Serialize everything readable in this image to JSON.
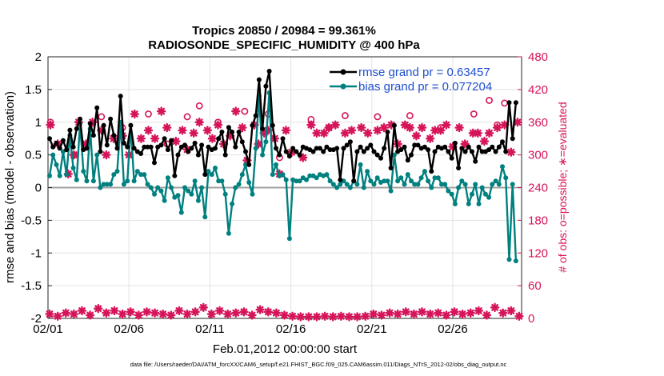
{
  "chart_data": {
    "type": "line",
    "title_line1": "Tropics 20850 / 20984 = 99.361%",
    "title_line2": "RADIOSONDE_SPECIFIC_HUMIDITY @ 400 hPa",
    "xlabel": "Feb.01,2012 00:00:00 start",
    "ylabel_left": "rmse and bias (model - observation)",
    "ylabel_right": "# of obs: o=possible; ∗=evaluated",
    "footer": "data file: /Users/raeder/DAI/ATM_forcXX/CAM6_setup/f.e21.FHIST_BGC.f09_025.CAM6assim.011/Diags_NTrS_2012-02/obs_diag_output.nc",
    "xlim": [
      1,
      30.25
    ],
    "ylim_left": [
      -2,
      2
    ],
    "ylim_right": [
      0,
      480
    ],
    "x_ticks": [
      1,
      6,
      11,
      16,
      21,
      26
    ],
    "x_tick_labels": [
      "02/01",
      "02/06",
      "02/11",
      "02/16",
      "02/21",
      "02/26"
    ],
    "y_ticks_left": [
      -2,
      -1.5,
      -1,
      -0.5,
      0,
      0.5,
      1,
      1.5,
      2
    ],
    "y_tick_labels_left": [
      "-2",
      "-1.5",
      "-1",
      "-0.5",
      "0",
      "0.5",
      "1",
      "1.5",
      "2"
    ],
    "y_ticks_right": [
      0,
      60,
      120,
      180,
      240,
      300,
      360,
      420,
      480
    ],
    "y_tick_labels_right": [
      "0",
      "60",
      "120",
      "180",
      "240",
      "300",
      "360",
      "420",
      "480"
    ],
    "grid": true,
    "legend_position": "top-right",
    "colors": {
      "rmse": "#000000",
      "bias": "#00807f",
      "obs": "#d6145a",
      "legend_text": "#1f4fd0",
      "zero_line": "#a0a0a0"
    },
    "series": [
      {
        "name": "rmse grand pr = 0.63457",
        "key": "rmse",
        "values": [
          0.75,
          0.62,
          0.68,
          0.6,
          0.72,
          0.58,
          0.88,
          0.62,
          0.9,
          1.05,
          0.58,
          0.6,
          0.98,
          0.8,
          1.22,
          0.55,
          0.95,
          0.65,
          1.05,
          0.8,
          0.6,
          1.4,
          0.68,
          0.62,
          0.95,
          0.6,
          0.55,
          0.52,
          0.62,
          0.62,
          0.62,
          0.38,
          0.62,
          0.65,
          0.75,
          0.58,
          0.72,
          0.18,
          0.5,
          0.62,
          0.65,
          0.55,
          0.6,
          0.68,
          0.5,
          0.65,
          0.2,
          0.62,
          0.58,
          0.6,
          0.75,
          0.85,
          0.5,
          0.92,
          0.85,
          0.62,
          0.85,
          0.7,
          0.55,
          0.35,
          0.95,
          1.1,
          1.65,
          0.9,
          1.55,
          1.78,
          0.95,
          0.6,
          0.5,
          0.75,
          0.55,
          0.48,
          0.6,
          0.55,
          0.5,
          0.62,
          0.6,
          0.58,
          0.55,
          0.6,
          0.6,
          0.55,
          0.62,
          0.58,
          0.58,
          0.6,
          0.12,
          0.6,
          0.65,
          0.7,
          0.1,
          0.55,
          0.62,
          0.55,
          0.6,
          0.65,
          0.55,
          0.5,
          0.45,
          0.6,
          0.85,
          0.3,
          0.95,
          0.55,
          0.58,
          0.62,
          0.42,
          0.5,
          0.65,
          0.65,
          0.6,
          0.62,
          0.58,
          0.25,
          0.55,
          0.62,
          0.6,
          0.62,
          0.55,
          0.45,
          0.68,
          0.3,
          0.6,
          0.55,
          0.62,
          0.55,
          0.4,
          0.62,
          0.55,
          0.55,
          0.58,
          0.62,
          0.55,
          0.62,
          0.7,
          0.55,
          1.3,
          0.75,
          1.3
        ]
      },
      {
        "name": "bias grand pr = 0.077204",
        "key": "bias",
        "values": [
          0.18,
          0.5,
          0.35,
          0.18,
          0.55,
          0.2,
          0.8,
          0.3,
          0.12,
          0.98,
          0.25,
          0.1,
          0.9,
          0.1,
          0.5,
          0.0,
          0.05,
          0.05,
          0.05,
          0.2,
          0.25,
          1.0,
          0.05,
          0.1,
          0.95,
          0.1,
          0.25,
          0.2,
          0.2,
          0.05,
          0.0,
          -0.1,
          0.0,
          -0.05,
          -0.2,
          0.15,
          0.0,
          -0.15,
          -0.12,
          -0.38,
          0.0,
          -0.05,
          -0.1,
          0.1,
          -0.2,
          0.0,
          -0.45,
          0.25,
          0.2,
          0.3,
          0.1,
          0.1,
          -0.1,
          -0.7,
          -0.25,
          0.0,
          0.05,
          0.2,
          0.35,
          0.08,
          -0.1,
          0.6,
          1.4,
          0.5,
          0.7,
          1.45,
          0.2,
          0.35,
          0.18,
          0.2,
          0.12,
          -0.78,
          0.12,
          0.1,
          0.1,
          0.15,
          0.12,
          0.18,
          0.18,
          0.15,
          0.2,
          0.18,
          0.2,
          0.1,
          0.05,
          0.0,
          0.05,
          0.1,
          0.05,
          0.0,
          0.1,
          0.05,
          0.35,
          0.0,
          0.25,
          0.1,
          0.05,
          0.15,
          0.08,
          0.1,
          0.1,
          -0.05,
          0.5,
          0.1,
          0.15,
          0.05,
          0.2,
          0.1,
          0.05,
          0.05,
          0.15,
          0.25,
          0.1,
          0.0,
          0.15,
          0.15,
          0.05,
          0.05,
          -0.05,
          -0.1,
          -0.25,
          0.0,
          0.1,
          0.05,
          -0.25,
          -0.1,
          0.05,
          -0.25,
          0.0,
          -0.1,
          -0.15,
          0.05,
          0.1,
          0.05,
          0.32,
          0.15,
          -1.1,
          0.05,
          -1.12
        ]
      }
    ],
    "obs_possible": {
      "name": "o=possible",
      "x": [
        1.15,
        2.6,
        4.3,
        5.6,
        7.2,
        8.35,
        9.6,
        10.35,
        11.5,
        13.15,
        14.6,
        15.3,
        17.25,
        18.35,
        19.35,
        21.35,
        23.35,
        25.25,
        27.3,
        28.25,
        28.75,
        29.2
      ],
      "values": [
        360,
        300,
        370,
        350,
        375,
        320,
        370,
        390,
        360,
        380,
        375,
        295,
        365,
        350,
        372,
        370,
        372,
        350,
        375,
        400,
        355,
        395
      ]
    },
    "obs_evaluated": {
      "name": "∗=evaluated",
      "x": [
        1.15,
        1.6,
        2.25,
        2.6,
        2.9,
        3.35,
        3.75,
        4.3,
        4.6,
        5.05,
        5.6,
        6.0,
        6.35,
        6.75,
        7.2,
        7.6,
        8.0,
        8.35,
        8.9,
        9.3,
        9.6,
        10.0,
        10.35,
        10.85,
        11.15,
        11.5,
        11.85,
        12.25,
        12.6,
        13.0,
        13.3,
        13.75,
        14.0,
        14.35,
        14.6,
        15.0,
        15.3,
        15.7,
        16.05,
        16.75,
        17.25,
        17.6,
        18.05,
        18.35,
        18.75,
        19.35,
        19.75,
        20.35,
        20.75,
        21.35,
        21.75,
        22.2,
        22.6,
        23.05,
        23.35,
        23.75,
        24.1,
        24.6,
        24.9,
        25.25,
        25.6,
        26.0,
        26.4,
        26.75,
        27.25,
        27.55,
        27.95,
        28.25,
        28.75,
        29.2,
        29.6,
        30.0
      ],
      "values": [
        355,
        320,
        265,
        300,
        360,
        320,
        360,
        345,
        300,
        330,
        335,
        300,
        375,
        330,
        345,
        330,
        380,
        350,
        325,
        345,
        310,
        340,
        360,
        345,
        330,
        355,
        320,
        335,
        380,
        350,
        290,
        355,
        320,
        340,
        345,
        330,
        265,
        345,
        305,
        295,
        355,
        340,
        340,
        350,
        355,
        340,
        345,
        350,
        340,
        345,
        350,
        355,
        320,
        355,
        350,
        335,
        350,
        330,
        345,
        345,
        355,
        315,
        350,
        320,
        340,
        340,
        325,
        340,
        350,
        355,
        305,
        360
      ],
      "bottom_x": [
        1.1,
        1.6,
        2.1,
        2.6,
        3.1,
        3.6,
        4.1,
        4.6,
        5.1,
        5.6,
        6.1,
        6.6,
        7.1,
        7.6,
        8.1,
        8.6,
        9.1,
        9.6,
        10.1,
        10.6,
        11.1,
        11.6,
        12.1,
        12.6,
        13.1,
        13.6,
        14.1,
        14.6,
        15.1,
        15.6,
        16.1,
        16.6,
        17.1,
        17.6,
        18.1,
        18.6,
        19.1,
        19.6,
        20.1,
        20.6,
        21.1,
        21.6,
        22.1,
        22.6,
        23.1,
        23.6,
        24.1,
        24.6,
        25.1,
        25.6,
        26.1,
        26.6,
        27.1,
        27.6,
        28.1,
        28.6,
        29.1,
        29.6,
        30.1
      ],
      "bottom_values": [
        8,
        4,
        10,
        8,
        14,
        6,
        18,
        10,
        14,
        8,
        12,
        6,
        12,
        10,
        8,
        6,
        14,
        8,
        12,
        20,
        8,
        14,
        8,
        10,
        12,
        6,
        16,
        12,
        10,
        6,
        4,
        3,
        3,
        3,
        4,
        3,
        4,
        3,
        3,
        4,
        8,
        6,
        10,
        8,
        12,
        8,
        12,
        8,
        10,
        6,
        12,
        8,
        10,
        14,
        6,
        20,
        10,
        14,
        4
      ]
    }
  }
}
